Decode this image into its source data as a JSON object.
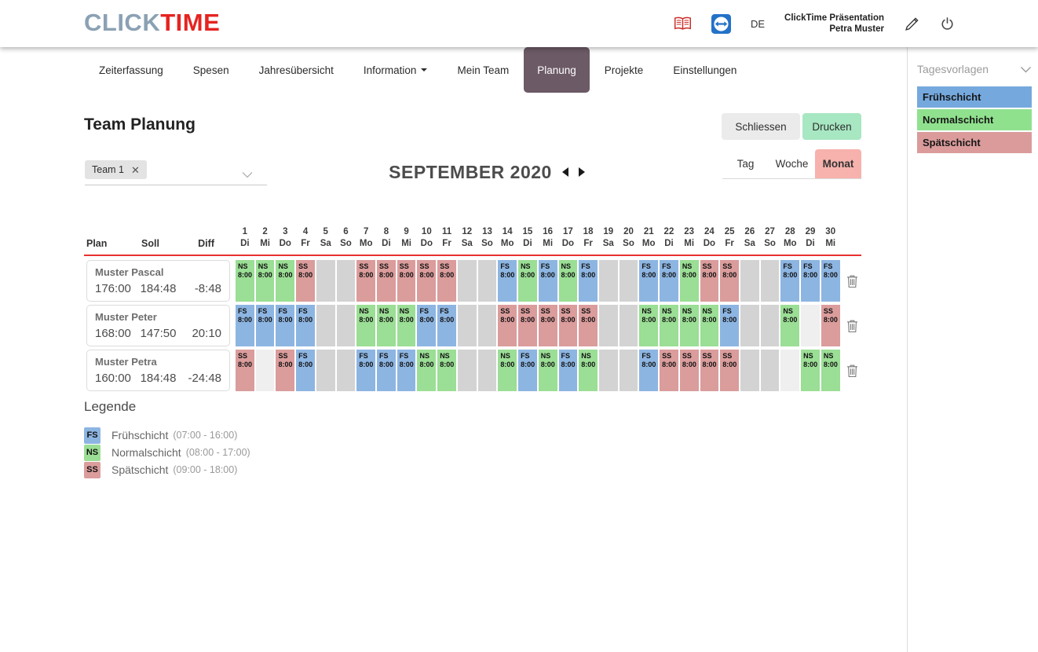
{
  "header": {
    "logo_click": "CLICK",
    "logo_time": "TIME",
    "language": "DE",
    "account_line1": "ClickTime Präsentation",
    "account_line2": "Petra Muster"
  },
  "nav": {
    "tabs": [
      {
        "label": "Zeiterfassung",
        "active": false,
        "dropdown": false
      },
      {
        "label": "Spesen",
        "active": false,
        "dropdown": false
      },
      {
        "label": "Jahresübersicht",
        "active": false,
        "dropdown": false
      },
      {
        "label": "Information",
        "active": false,
        "dropdown": true
      },
      {
        "label": "Mein Team",
        "active": false,
        "dropdown": false
      },
      {
        "label": "Planung",
        "active": true,
        "dropdown": false
      },
      {
        "label": "Projekte",
        "active": false,
        "dropdown": false
      },
      {
        "label": "Einstellungen",
        "active": false,
        "dropdown": false
      }
    ]
  },
  "page": {
    "title": "Team Planung",
    "close_button": "Schliessen",
    "print_button": "Drucken",
    "team_chip": "Team 1",
    "period_title": "SEPTEMBER 2020",
    "views": [
      "Tag",
      "Woche",
      "Monat"
    ],
    "active_view": "Monat",
    "colors": {
      "active_tab": "#6c5a66",
      "print_button": "#a7e7c2",
      "close_button": "#ebebeb",
      "active_view": "#f7b2ad",
      "header_underline": "#e8312e",
      "logo_red": "#e52421",
      "logo_gray": "#8ba1b4"
    }
  },
  "planner": {
    "summary_headers": [
      "Plan",
      "Soll",
      "Diff"
    ],
    "shift_time": "8:00",
    "shift_colors": {
      "FS": "#8db5e2",
      "NS": "#9bde95",
      "SS": "#db9c9c"
    },
    "weekend_color": "#d3d3d3",
    "empty_color": "#efefef",
    "days": [
      {
        "num": "1",
        "dow": "Di",
        "weekend": false
      },
      {
        "num": "2",
        "dow": "Mi",
        "weekend": false
      },
      {
        "num": "3",
        "dow": "Do",
        "weekend": false
      },
      {
        "num": "4",
        "dow": "Fr",
        "weekend": false
      },
      {
        "num": "5",
        "dow": "Sa",
        "weekend": true
      },
      {
        "num": "6",
        "dow": "So",
        "weekend": true
      },
      {
        "num": "7",
        "dow": "Mo",
        "weekend": false
      },
      {
        "num": "8",
        "dow": "Di",
        "weekend": false
      },
      {
        "num": "9",
        "dow": "Mi",
        "weekend": false
      },
      {
        "num": "10",
        "dow": "Do",
        "weekend": false
      },
      {
        "num": "11",
        "dow": "Fr",
        "weekend": false
      },
      {
        "num": "12",
        "dow": "Sa",
        "weekend": true
      },
      {
        "num": "13",
        "dow": "So",
        "weekend": true
      },
      {
        "num": "14",
        "dow": "Mo",
        "weekend": false
      },
      {
        "num": "15",
        "dow": "Di",
        "weekend": false
      },
      {
        "num": "16",
        "dow": "Mi",
        "weekend": false
      },
      {
        "num": "17",
        "dow": "Do",
        "weekend": false
      },
      {
        "num": "18",
        "dow": "Fr",
        "weekend": false
      },
      {
        "num": "19",
        "dow": "Sa",
        "weekend": true
      },
      {
        "num": "20",
        "dow": "So",
        "weekend": true
      },
      {
        "num": "21",
        "dow": "Mo",
        "weekend": false
      },
      {
        "num": "22",
        "dow": "Di",
        "weekend": false
      },
      {
        "num": "23",
        "dow": "Mi",
        "weekend": false
      },
      {
        "num": "24",
        "dow": "Do",
        "weekend": false
      },
      {
        "num": "25",
        "dow": "Fr",
        "weekend": false
      },
      {
        "num": "26",
        "dow": "Sa",
        "weekend": true
      },
      {
        "num": "27",
        "dow": "So",
        "weekend": true
      },
      {
        "num": "28",
        "dow": "Mo",
        "weekend": false
      },
      {
        "num": "29",
        "dow": "Di",
        "weekend": false
      },
      {
        "num": "30",
        "dow": "Mi",
        "weekend": false
      }
    ],
    "rows": [
      {
        "name": "Muster Pascal",
        "plan": "176:00",
        "soll": "184:48",
        "diff": "-8:48",
        "shifts": [
          "NS",
          "NS",
          "NS",
          "SS",
          "",
          "",
          "SS",
          "SS",
          "SS",
          "SS",
          "SS",
          "",
          "",
          "FS",
          "NS",
          "FS",
          "NS",
          "FS",
          "",
          "",
          "FS",
          "FS",
          "NS",
          "SS",
          "SS",
          "",
          "",
          "FS",
          "FS",
          "FS"
        ]
      },
      {
        "name": "Muster Peter",
        "plan": "168:00",
        "soll": "147:50",
        "diff": "20:10",
        "shifts": [
          "FS",
          "FS",
          "FS",
          "FS",
          "",
          "",
          "NS",
          "NS",
          "NS",
          "FS",
          "FS",
          "",
          "",
          "SS",
          "SS",
          "SS",
          "SS",
          "SS",
          "",
          "",
          "NS",
          "NS",
          "NS",
          "NS",
          "FS",
          "",
          "",
          "NS",
          "",
          "SS"
        ]
      },
      {
        "name": "Muster Petra",
        "plan": "160:00",
        "soll": "184:48",
        "diff": "-24:48",
        "shifts": [
          "SS",
          "",
          "SS",
          "FS",
          "",
          "",
          "FS",
          "FS",
          "FS",
          "NS",
          "NS",
          "",
          "",
          "NS",
          "FS",
          "NS",
          "FS",
          "NS",
          "",
          "",
          "FS",
          "SS",
          "SS",
          "SS",
          "SS",
          "",
          "",
          "",
          "NS",
          "NS"
        ]
      }
    ]
  },
  "legend": {
    "title": "Legende",
    "items": [
      {
        "code": "FS",
        "label": "Frühschicht",
        "time": "(07:00 - 16:00)"
      },
      {
        "code": "NS",
        "label": "Normalschicht",
        "time": "(08:00 - 17:00)"
      },
      {
        "code": "SS",
        "label": "Spätschicht",
        "time": "(09:00 - 18:00)"
      }
    ]
  },
  "sidebar": {
    "title": "Tagesvorlagen",
    "items": [
      {
        "label": "Frühschicht",
        "color": "#75a9de"
      },
      {
        "label": "Normalschicht",
        "color": "#90e18e"
      },
      {
        "label": "Spätschicht",
        "color": "#db9b9b"
      }
    ]
  }
}
